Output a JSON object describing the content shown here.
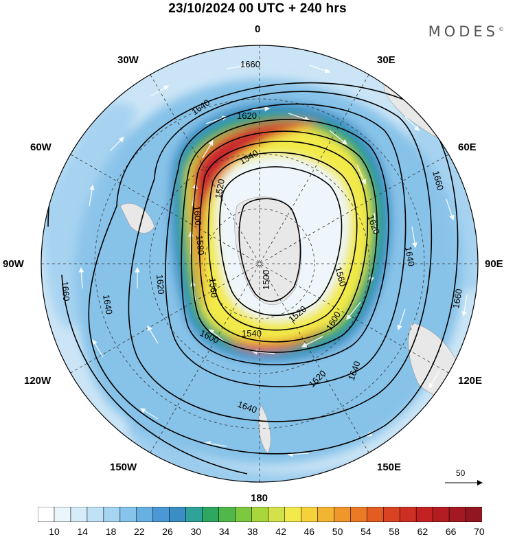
{
  "header": {
    "title": "23/10/2024  00 UTC  + 240 hrs",
    "brand": "MODES",
    "brand_mark": "©"
  },
  "map": {
    "projection": "south-polar-stereographic",
    "longitude_labels": {
      "top": "0",
      "upper_right": "30E",
      "right_upper": "60E",
      "right": "90E",
      "right_lower": "120E",
      "lower_right": "150E",
      "bottom": "180",
      "lower_left": "150W",
      "left_lower": "120W",
      "left": "90W",
      "left_upper": "60W",
      "upper_left": "30W"
    },
    "contour_labels": [
      "1660",
      "1640",
      "1620",
      "1540",
      "1600",
      "1580",
      "1560",
      "1500",
      "1520",
      "1620",
      "1660",
      "1620",
      "1640",
      "1660",
      "1640",
      "1600",
      "1540",
      "1560",
      "1520",
      "1600",
      "1640",
      "1620",
      "1640",
      "1660"
    ],
    "contour_levels": [
      "1500",
      "1520",
      "1540",
      "1560",
      "1580",
      "1600",
      "1620",
      "1640",
      "1660"
    ],
    "reference_vector": "50",
    "colors": {
      "land": "#ececec",
      "jet_core": "#c8272d",
      "background_wind": "#6bb3e3"
    }
  },
  "colorbar": {
    "tick_labels": [
      "10",
      "14",
      "18",
      "22",
      "26",
      "30",
      "34",
      "38",
      "42",
      "46",
      "50",
      "54",
      "58",
      "62",
      "66",
      "70"
    ],
    "colors": [
      "#ffffff",
      "#eaf5fc",
      "#d6ecf9",
      "#bfe2f6",
      "#a6d5f1",
      "#87c4eb",
      "#66b0e2",
      "#4a98d6",
      "#3a8ec4",
      "#2fa39a",
      "#2ea860",
      "#4fb848",
      "#7cc83f",
      "#a9d63a",
      "#d3e14a",
      "#f2ea4a",
      "#f5d23a",
      "#f3b531",
      "#ef972a",
      "#ea7a26",
      "#e35d23",
      "#d94322",
      "#cf2e22",
      "#c42222",
      "#b31d21",
      "#a31921",
      "#911621"
    ]
  }
}
